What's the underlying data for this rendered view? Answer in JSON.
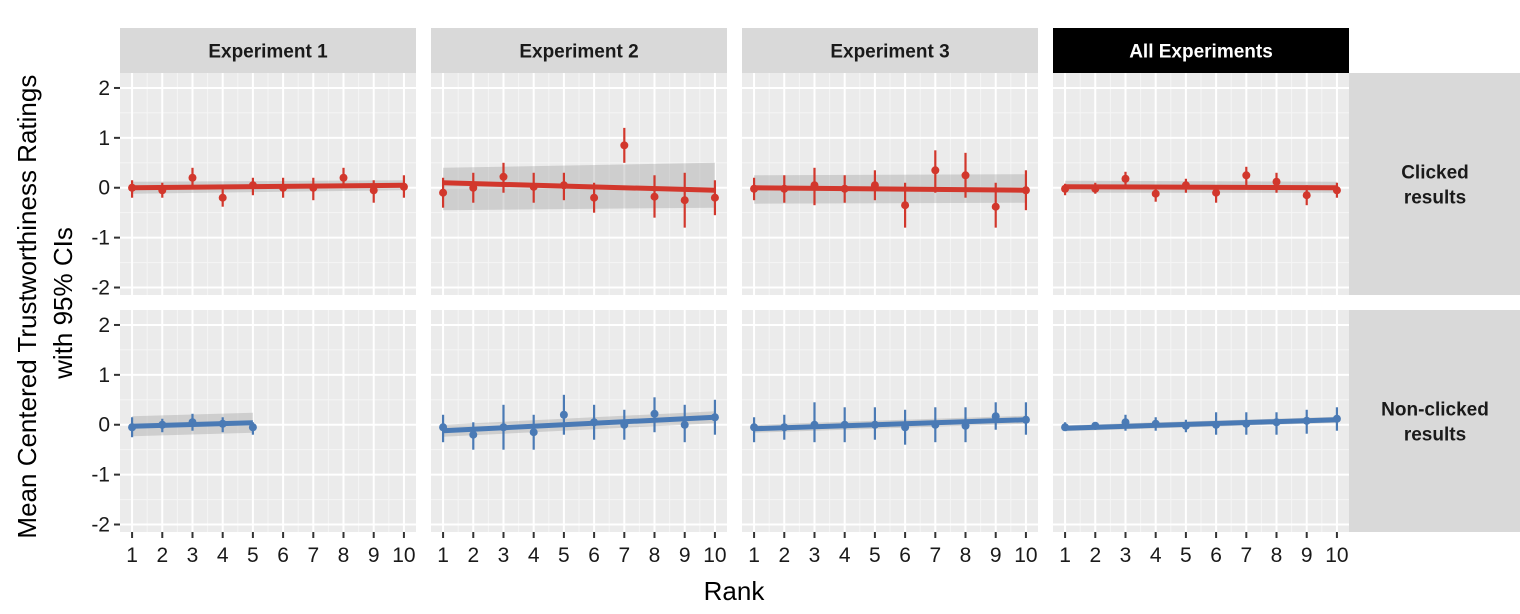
{
  "chart_data": {
    "type": "scatter",
    "ylabel_lines": [
      "Mean Centered Trustworthiness Ratings",
      "with 95% CIs"
    ],
    "xlabel": "Rank",
    "x_ticks": [
      "1",
      "2",
      "3",
      "4",
      "5",
      "6",
      "7",
      "8",
      "9",
      "10"
    ],
    "y_ticks": [
      "2",
      "1",
      "0",
      "-1",
      "-2"
    ],
    "ylim": [
      -2.15,
      2.3
    ],
    "xlim": [
      0.6,
      10.4
    ],
    "columns": [
      {
        "label": "Experiment 1",
        "highlight": false
      },
      {
        "label": "Experiment 2",
        "highlight": false
      },
      {
        "label": "Experiment 3",
        "highlight": false
      },
      {
        "label": "All Experiments",
        "highlight": true
      }
    ],
    "rows": [
      {
        "label_lines": [
          "Clicked",
          "results"
        ],
        "color": "#d2372c"
      },
      {
        "label_lines": [
          "Non-clicked",
          "results"
        ],
        "color": "#4a7ab5"
      }
    ],
    "panels": [
      {
        "row": 0,
        "col": 0,
        "x": [
          1,
          2,
          3,
          4,
          5,
          6,
          7,
          8,
          9,
          10
        ],
        "y": [
          0.0,
          -0.05,
          0.2,
          -0.2,
          0.05,
          0.0,
          0.0,
          0.2,
          -0.05,
          0.02
        ],
        "lo": [
          -0.2,
          -0.2,
          0.02,
          -0.38,
          -0.15,
          -0.2,
          -0.25,
          0.02,
          -0.3,
          -0.2
        ],
        "hi": [
          0.15,
          0.1,
          0.4,
          -0.02,
          0.2,
          0.2,
          0.2,
          0.4,
          0.15,
          0.25
        ],
        "fit": [
          0.0,
          0.05
        ],
        "band": [
          [
            0.12,
            0.12
          ],
          [
            0.1,
            0.1
          ]
        ]
      },
      {
        "row": 0,
        "col": 1,
        "x": [
          1,
          2,
          3,
          4,
          5,
          6,
          7,
          8,
          9,
          10
        ],
        "y": [
          -0.1,
          0.0,
          0.22,
          0.02,
          0.05,
          -0.2,
          0.85,
          -0.18,
          -0.25,
          -0.2
        ],
        "lo": [
          -0.4,
          -0.3,
          -0.1,
          -0.3,
          -0.25,
          -0.5,
          0.5,
          -0.6,
          -0.8,
          -0.55
        ],
        "hi": [
          0.2,
          0.3,
          0.5,
          0.3,
          0.3,
          0.1,
          1.2,
          0.25,
          0.3,
          0.15
        ],
        "fit": [
          0.1,
          -0.05
        ],
        "band": [
          [
            0.55,
            0.3
          ],
          [
            0.35,
            0.55
          ]
        ]
      },
      {
        "row": 0,
        "col": 2,
        "x": [
          1,
          2,
          3,
          4,
          5,
          6,
          7,
          8,
          9,
          10
        ],
        "y": [
          -0.02,
          -0.02,
          0.05,
          -0.02,
          0.05,
          -0.35,
          0.35,
          0.25,
          -0.38,
          -0.05
        ],
        "lo": [
          -0.25,
          -0.3,
          -0.35,
          -0.3,
          -0.25,
          -0.8,
          -0.1,
          -0.2,
          -0.8,
          -0.45
        ],
        "hi": [
          0.2,
          0.25,
          0.4,
          0.25,
          0.35,
          0.1,
          0.75,
          0.7,
          0.1,
          0.35
        ],
        "fit": [
          0.0,
          -0.05
        ],
        "band": [
          [
            0.32,
            0.25
          ],
          [
            0.25,
            0.32
          ]
        ]
      },
      {
        "row": 0,
        "col": 3,
        "x": [
          1,
          2,
          3,
          4,
          5,
          6,
          7,
          8,
          9,
          10
        ],
        "y": [
          -0.02,
          -0.02,
          0.18,
          -0.12,
          0.05,
          -0.1,
          0.25,
          0.12,
          -0.15,
          -0.05
        ],
        "lo": [
          -0.15,
          -0.12,
          0.0,
          -0.28,
          -0.1,
          -0.3,
          0.05,
          -0.1,
          -0.35,
          -0.2
        ],
        "hi": [
          0.08,
          0.1,
          0.32,
          0.02,
          0.18,
          0.05,
          0.42,
          0.3,
          0.05,
          0.1
        ],
        "fit": [
          0.02,
          0.0
        ],
        "band": [
          [
            0.12,
            0.12
          ],
          [
            0.1,
            0.12
          ]
        ]
      },
      {
        "row": 1,
        "col": 0,
        "x": [
          1,
          2,
          3,
          4,
          5
        ],
        "y": [
          -0.05,
          0.0,
          0.05,
          0.02,
          -0.05
        ],
        "lo": [
          -0.25,
          -0.15,
          -0.12,
          -0.15,
          -0.2
        ],
        "hi": [
          0.15,
          0.12,
          0.22,
          0.15,
          0.05
        ],
        "fit": [
          -0.03,
          0.04
        ],
        "band": [
          [
            0.2,
            0.2
          ],
          [
            0.2,
            0.2
          ]
        ]
      },
      {
        "row": 1,
        "col": 1,
        "x": [
          1,
          2,
          3,
          4,
          5,
          6,
          7,
          8,
          9,
          10
        ],
        "y": [
          -0.05,
          -0.2,
          -0.05,
          -0.15,
          0.2,
          0.05,
          0.0,
          0.22,
          0.0,
          0.15
        ],
        "lo": [
          -0.35,
          -0.5,
          -0.5,
          -0.5,
          -0.2,
          -0.3,
          -0.3,
          -0.15,
          -0.35,
          -0.2
        ],
        "hi": [
          0.2,
          0.05,
          0.4,
          0.2,
          0.6,
          0.4,
          0.3,
          0.55,
          0.4,
          0.5
        ],
        "fit": [
          -0.12,
          0.15
        ],
        "band": [
          [
            0.12,
            0.12
          ],
          [
            0.12,
            0.12
          ]
        ]
      },
      {
        "row": 1,
        "col": 2,
        "x": [
          1,
          2,
          3,
          4,
          5,
          6,
          7,
          8,
          9,
          10
        ],
        "y": [
          -0.05,
          -0.05,
          0.0,
          0.0,
          0.0,
          -0.05,
          0.0,
          -0.02,
          0.17,
          0.1
        ],
        "lo": [
          -0.35,
          -0.3,
          -0.35,
          -0.35,
          -0.3,
          -0.4,
          -0.35,
          -0.35,
          -0.1,
          -0.2
        ],
        "hi": [
          0.15,
          0.2,
          0.45,
          0.35,
          0.35,
          0.3,
          0.35,
          0.35,
          0.45,
          0.45
        ],
        "fit": [
          -0.08,
          0.1
        ],
        "band": [
          [
            0.08,
            0.08
          ],
          [
            0.08,
            0.08
          ]
        ]
      },
      {
        "row": 1,
        "col": 3,
        "x": [
          1,
          2,
          3,
          4,
          5,
          6,
          7,
          8,
          9,
          10
        ],
        "y": [
          -0.05,
          -0.02,
          0.05,
          0.02,
          -0.02,
          0.0,
          0.02,
          0.05,
          0.08,
          0.12
        ],
        "lo": [
          -0.12,
          -0.1,
          -0.12,
          -0.12,
          -0.15,
          -0.2,
          -0.2,
          -0.2,
          -0.18,
          -0.12
        ],
        "hi": [
          0.05,
          0.05,
          0.2,
          0.15,
          0.1,
          0.25,
          0.25,
          0.25,
          0.3,
          0.35
        ],
        "fit": [
          -0.07,
          0.1
        ],
        "band": [
          [
            0.06,
            0.06
          ],
          [
            0.06,
            0.06
          ]
        ]
      }
    ]
  }
}
